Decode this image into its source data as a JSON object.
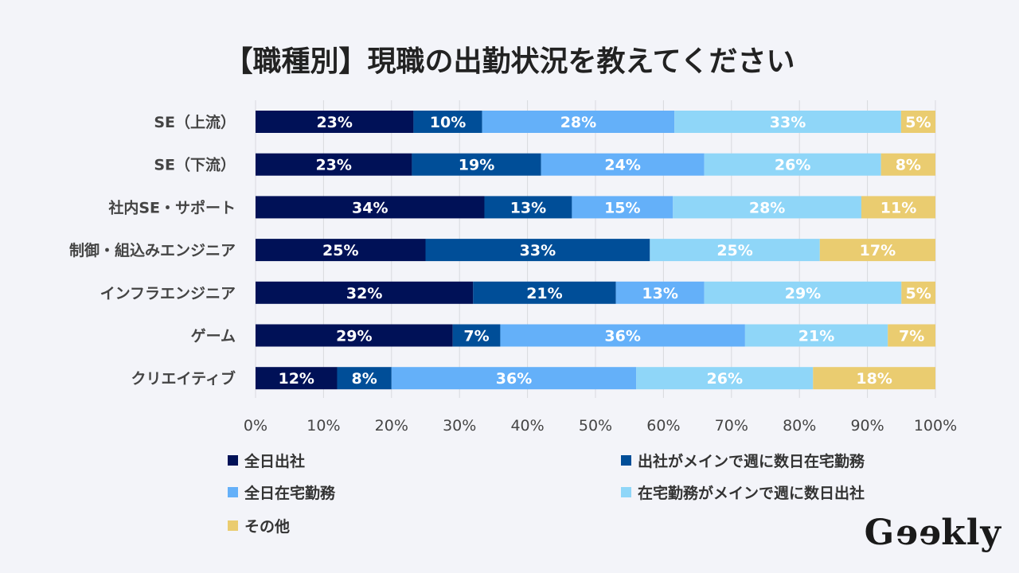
{
  "chart_data": {
    "type": "bar",
    "orientation": "horizontal",
    "stacked": true,
    "title": "【職種別】現職の出勤状況を教えてください",
    "categories": [
      "SE（上流）",
      "SE（下流）",
      "社内SE・サポート",
      "制御・組込みエンジニア",
      "インフラエンジニア",
      "ゲーム",
      "クリエイティブ"
    ],
    "series": [
      {
        "name": "全日出社",
        "color": "#001157",
        "values": [
          23,
          23,
          34,
          25,
          32,
          29,
          12
        ]
      },
      {
        "name": "出社がメインで週に数日在宅勤務",
        "color": "#004e98",
        "values": [
          10,
          19,
          13,
          33,
          21,
          7,
          8
        ]
      },
      {
        "name": "全日在宅勤務",
        "color": "#64b0f9",
        "values": [
          28,
          24,
          15,
          0,
          13,
          36,
          36
        ]
      },
      {
        "name": "在宅勤務がメインで週に数日出社",
        "color": "#8fd6f8",
        "values": [
          33,
          26,
          28,
          25,
          29,
          21,
          26
        ]
      },
      {
        "name": "その他",
        "color": "#eacc70",
        "values": [
          5,
          8,
          11,
          17,
          5,
          7,
          18
        ]
      }
    ],
    "xlim": [
      0,
      100
    ],
    "xticks": [
      "0%",
      "10%",
      "20%",
      "30%",
      "40%",
      "50%",
      "60%",
      "70%",
      "80%",
      "90%",
      "100%"
    ],
    "grid": true,
    "legend_position": "bottom"
  },
  "logo": "Geekly"
}
